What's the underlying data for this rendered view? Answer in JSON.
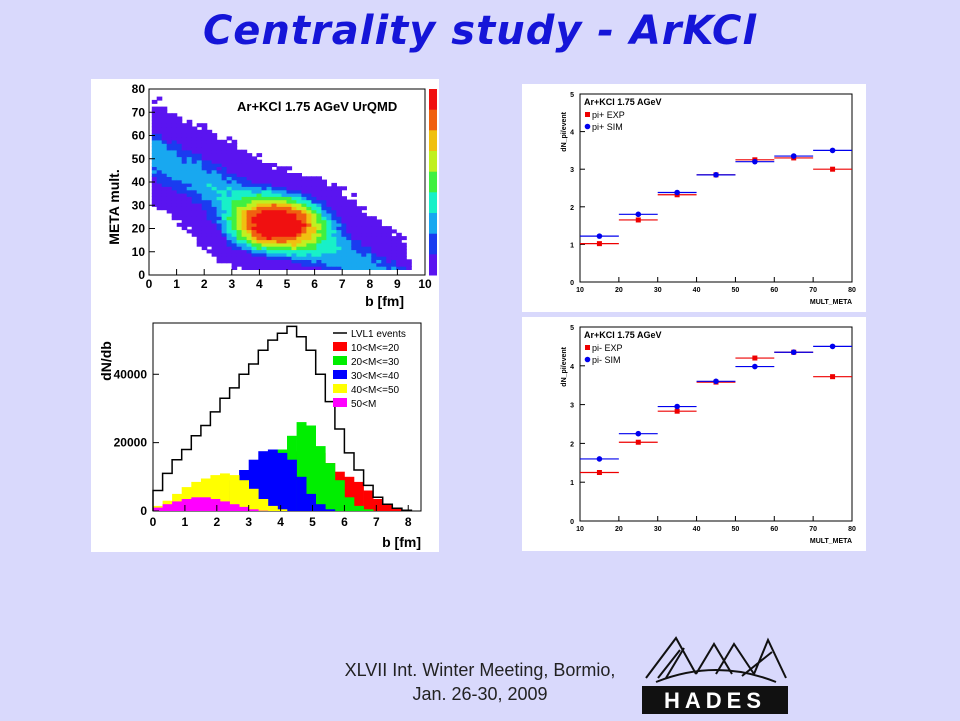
{
  "slide": {
    "title": "Centrality study - ArKCl",
    "footer_line1": "XLVII Int. Winter Meeting, Bormio,",
    "footer_line2": "Jan. 26-30, 2009",
    "logo_text": "HADES"
  },
  "colors": {
    "background": "#d9d9fc",
    "title": "#1515d8",
    "exp": "#ee0000",
    "sim": "#0000ee"
  },
  "chart_data": [
    {
      "type": "heatmap",
      "title": "Ar+KCl 1.75 AGeV UrQMD",
      "xlabel": "b [fm]",
      "ylabel": "META mult.",
      "xlim": [
        0,
        10
      ],
      "ylim": [
        0,
        80
      ],
      "x_ticks": [
        "0",
        "1",
        "2",
        "3",
        "4",
        "5",
        "6",
        "7",
        "8",
        "9",
        "10"
      ],
      "y_ticks": [
        "0",
        "10",
        "20",
        "30",
        "40",
        "50",
        "60",
        "70",
        "80"
      ],
      "peak": {
        "b": 4.5,
        "mult": 21
      },
      "color_scale": [
        "#5a14f0",
        "#1a3cf0",
        "#18a8f0",
        "#18f0c8",
        "#40f040",
        "#c0f020",
        "#f0c010",
        "#f06010",
        "#f01010"
      ]
    },
    {
      "type": "bar",
      "xlabel": "b [fm]",
      "ylabel": "dN/db",
      "xlim": [
        0,
        8.4
      ],
      "ylim": [
        0,
        55000
      ],
      "x_ticks": [
        "0",
        "1",
        "2",
        "3",
        "4",
        "5",
        "6",
        "7",
        "8"
      ],
      "y_ticks": [
        "0",
        "20000",
        "40000"
      ],
      "legend": [
        "LVL1 events",
        "10<M<=20",
        "20<M<=30",
        "30<M<=40",
        "40<M<=50",
        "50<M"
      ],
      "series": [
        {
          "name": "LVL1 events",
          "x": [
            0.15,
            0.45,
            0.75,
            1.05,
            1.35,
            1.65,
            1.95,
            2.25,
            2.55,
            2.85,
            3.15,
            3.45,
            3.75,
            4.05,
            4.35,
            4.65,
            4.95,
            5.25,
            5.55,
            5.85,
            6.15,
            6.45,
            6.75,
            7.05,
            7.35,
            7.65,
            7.95
          ],
          "values": [
            6000,
            11000,
            15000,
            18000,
            22000,
            25000,
            29000,
            33000,
            36000,
            40000,
            43000,
            47000,
            50000,
            52000,
            54000,
            51000,
            47000,
            40000,
            32000,
            24000,
            17000,
            12000,
            7500,
            4000,
            2000,
            800,
            200
          ]
        },
        {
          "name": "10<M<=20",
          "values": [
            0,
            0,
            0,
            0,
            0,
            0,
            0,
            0,
            0,
            500,
            1500,
            2500,
            5000,
            9000,
            13000,
            17500,
            19000,
            17000,
            14000,
            11500,
            10000,
            8500,
            6000,
            3500,
            1800,
            700,
            200
          ]
        },
        {
          "name": "20<M<=30",
          "values": [
            0,
            0,
            0,
            0,
            0,
            0,
            0,
            500,
            1500,
            3000,
            6000,
            10000,
            14000,
            18000,
            22000,
            26000,
            25000,
            19000,
            14000,
            9000,
            4000,
            1500,
            500,
            0,
            0,
            0,
            0
          ]
        },
        {
          "name": "30<M<=40",
          "values": [
            0,
            0,
            0,
            500,
            1000,
            2000,
            3500,
            6000,
            9000,
            12000,
            15000,
            17500,
            18000,
            17000,
            15000,
            10000,
            5000,
            2000,
            500,
            0,
            0,
            0,
            0,
            0,
            0,
            0,
            0
          ]
        },
        {
          "name": "40<M<=50",
          "values": [
            1500,
            3000,
            5000,
            7000,
            8500,
            9500,
            10500,
            11000,
            10500,
            9000,
            6500,
            3500,
            1500,
            500,
            0,
            0,
            0,
            0,
            0,
            0,
            0,
            0,
            0,
            0,
            0,
            0,
            0
          ]
        },
        {
          "name": "50<M",
          "values": [
            1000,
            2000,
            2800,
            3500,
            4000,
            4000,
            3500,
            2800,
            2000,
            1200,
            500,
            100,
            0,
            0,
            0,
            0,
            0,
            0,
            0,
            0,
            0,
            0,
            0,
            0,
            0,
            0,
            0
          ]
        }
      ]
    },
    {
      "type": "scatter",
      "title": "Ar+KCl 1.75 AGeV",
      "xlabel": "MULT_META",
      "ylabel": "dN_pi/event",
      "xlim": [
        10,
        80
      ],
      "ylim": [
        0,
        5
      ],
      "x_ticks": [
        "10",
        "20",
        "30",
        "40",
        "50",
        "60",
        "70",
        "80"
      ],
      "y_ticks": [
        "0",
        "1",
        "2",
        "3",
        "4",
        "5"
      ],
      "series": [
        {
          "name": "pi+ EXP",
          "x": [
            15,
            25,
            35,
            45,
            55,
            65,
            75
          ],
          "values": [
            1.02,
            1.65,
            2.32,
            2.85,
            3.25,
            3.3,
            3.0
          ]
        },
        {
          "name": "pi+ SIM",
          "x": [
            15,
            25,
            35,
            45,
            55,
            65,
            75
          ],
          "values": [
            1.22,
            1.8,
            2.38,
            2.85,
            3.2,
            3.35,
            3.5
          ]
        }
      ]
    },
    {
      "type": "scatter",
      "title": "Ar+KCl 1.75 AGeV",
      "xlabel": "MULT_META",
      "ylabel": "dN_pi/event",
      "xlim": [
        10,
        80
      ],
      "ylim": [
        0,
        5
      ],
      "x_ticks": [
        "10",
        "20",
        "30",
        "40",
        "50",
        "60",
        "70",
        "80"
      ],
      "y_ticks": [
        "0",
        "1",
        "2",
        "3",
        "4",
        "5"
      ],
      "series": [
        {
          "name": "pi- EXP",
          "x": [
            15,
            25,
            35,
            45,
            55,
            65,
            75
          ],
          "values": [
            1.25,
            2.03,
            2.83,
            3.58,
            4.2,
            4.35,
            3.72
          ]
        },
        {
          "name": "pi- SIM",
          "x": [
            15,
            25,
            35,
            45,
            55,
            65,
            75
          ],
          "values": [
            1.6,
            2.25,
            2.95,
            3.6,
            3.98,
            4.35,
            4.5
          ]
        }
      ]
    }
  ]
}
